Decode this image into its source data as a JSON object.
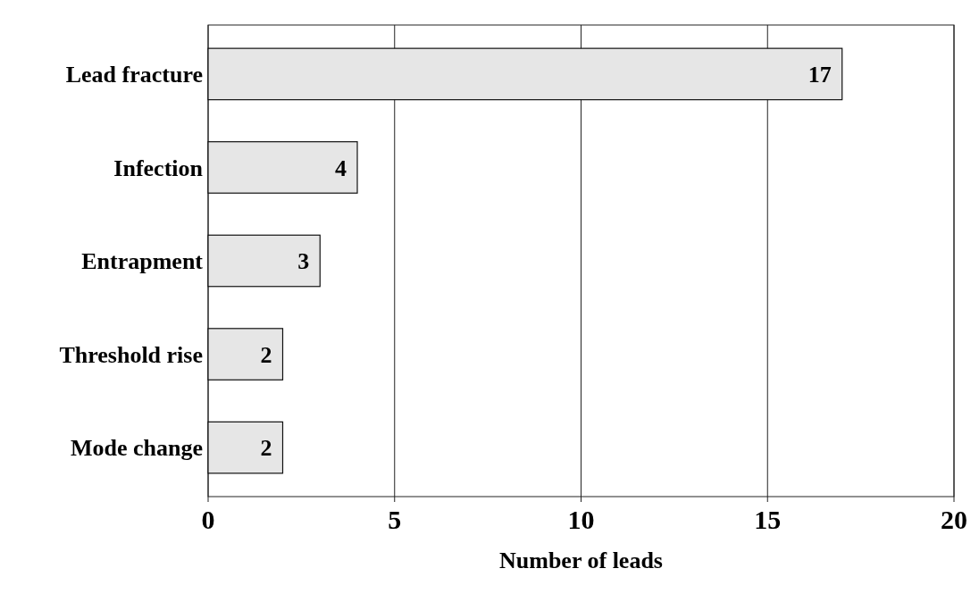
{
  "chart_data": {
    "type": "bar",
    "orientation": "horizontal",
    "categories": [
      "Lead fracture",
      "Infection",
      "Entrapment",
      "Threshold rise",
      "Mode change"
    ],
    "values": [
      17,
      4,
      3,
      2,
      2
    ],
    "color": "#e6e6e6",
    "xlim": [
      0,
      20
    ],
    "xticks": [
      0,
      5,
      10,
      15,
      20
    ],
    "xlabel": "Number of leads",
    "grid": "x",
    "data_labels": true
  }
}
